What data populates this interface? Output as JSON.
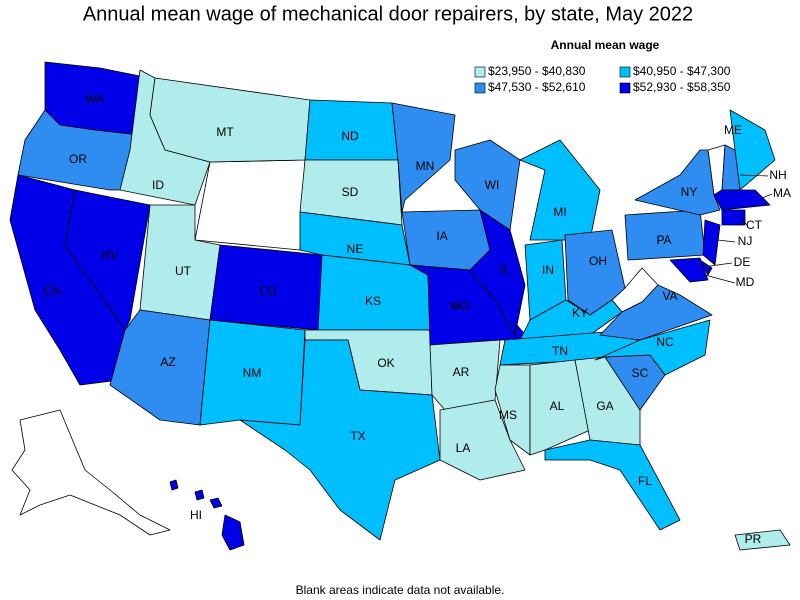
{
  "title": "Annual mean wage of mechanical door repairers, by state, May 2022",
  "legend": {
    "title": "Annual mean wage",
    "items": [
      {
        "label": "$23,950 - $40,830",
        "color": "#b0ecec"
      },
      {
        "label": "$40,950 - $47,300",
        "color": "#00bfff"
      },
      {
        "label": "$47,530 - $52,610",
        "color": "#2f8cf0"
      },
      {
        "label": "$52,930 - $58,350",
        "color": "#0000e8"
      }
    ]
  },
  "states": [
    {
      "label": "WA",
      "color": "#0000e8"
    },
    {
      "label": "OR",
      "color": "#2f8cf0"
    },
    {
      "label": "CA",
      "color": "#0000e8"
    },
    {
      "label": "NV",
      "color": "#0000e8"
    },
    {
      "label": "ID",
      "color": "#b0ecec"
    },
    {
      "label": "MT",
      "color": "#b0ecec"
    },
    {
      "label": "UT",
      "color": "#b0ecec"
    },
    {
      "label": "CO",
      "color": "#0000e8"
    },
    {
      "label": "AZ",
      "color": "#2f8cf0"
    },
    {
      "label": "NM",
      "color": "#00bfff"
    },
    {
      "label": "ND",
      "color": "#00bfff"
    },
    {
      "label": "SD",
      "color": "#b0ecec"
    },
    {
      "label": "NE",
      "color": "#00bfff"
    },
    {
      "label": "KS",
      "color": "#00bfff"
    },
    {
      "label": "OK",
      "color": "#b0ecec"
    },
    {
      "label": "TX",
      "color": "#00bfff"
    },
    {
      "label": "MN",
      "color": "#2f8cf0"
    },
    {
      "label": "IA",
      "color": "#2f8cf0"
    },
    {
      "label": "MO",
      "color": "#0000e8"
    },
    {
      "label": "AR",
      "color": "#b0ecec"
    },
    {
      "label": "LA",
      "color": "#b0ecec"
    },
    {
      "label": "WI",
      "color": "#2f8cf0"
    },
    {
      "label": "IL",
      "color": "#0000e8"
    },
    {
      "label": "MS",
      "color": "#b0ecec"
    },
    {
      "label": "MI",
      "color": "#00bfff"
    },
    {
      "label": "IN",
      "color": "#00bfff"
    },
    {
      "label": "OH",
      "color": "#2f8cf0"
    },
    {
      "label": "KY",
      "color": "#00bfff"
    },
    {
      "label": "TN",
      "color": "#00bfff"
    },
    {
      "label": "AL",
      "color": "#b0ecec"
    },
    {
      "label": "GA",
      "color": "#b0ecec"
    },
    {
      "label": "FL",
      "color": "#00bfff"
    },
    {
      "label": "SC",
      "color": "#2f8cf0"
    },
    {
      "label": "NC",
      "color": "#00bfff"
    },
    {
      "label": "VA",
      "color": "#2f8cf0"
    },
    {
      "label": "PA",
      "color": "#2f8cf0"
    },
    {
      "label": "NY",
      "color": "#2f8cf0"
    },
    {
      "label": "ME",
      "color": "#00bfff"
    },
    {
      "label": "NH",
      "color": "#2f8cf0"
    },
    {
      "label": "MA",
      "color": "#0000e8"
    },
    {
      "label": "CT",
      "color": "#0000e8"
    },
    {
      "label": "NJ",
      "color": "#0000e8"
    },
    {
      "label": "DE",
      "color": "#0000e8"
    },
    {
      "label": "MD",
      "color": "#0000e8"
    },
    {
      "label": "HI",
      "color": "#0000e8"
    },
    {
      "label": "PR",
      "color": "#b0ecec"
    }
  ],
  "footnote": "Blank areas indicate data not available."
}
